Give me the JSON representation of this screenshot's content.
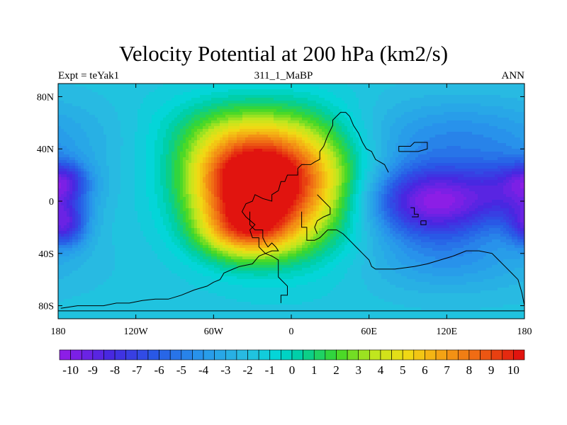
{
  "chart_data": {
    "type": "heatmap",
    "title": "Velocity Potential at 200 hPa (km2/s)",
    "left_subtitle": "Expt = teYak1",
    "center_subtitle": "311_1_MaBP",
    "right_subtitle": "ANN",
    "x_ticks": [
      {
        "value": -180,
        "label": "180"
      },
      {
        "value": -120,
        "label": "120W"
      },
      {
        "value": -60,
        "label": "60W"
      },
      {
        "value": 0,
        "label": "0"
      },
      {
        "value": 60,
        "label": "60E"
      },
      {
        "value": 120,
        "label": "120E"
      },
      {
        "value": 180,
        "label": "180"
      }
    ],
    "y_ticks": [
      {
        "value": 80,
        "label": "80N"
      },
      {
        "value": 40,
        "label": "40N"
      },
      {
        "value": 0,
        "label": "0"
      },
      {
        "value": -40,
        "label": "40S"
      },
      {
        "value": -80,
        "label": "80S"
      }
    ],
    "xlim": [
      -180,
      180
    ],
    "ylim": [
      -90,
      90
    ],
    "colorbar": {
      "min": -10.5,
      "max": 10.5,
      "step": 0.5,
      "labels": [
        "-10",
        "-9",
        "-8",
        "-7",
        "-6",
        "-5",
        "-4",
        "-3",
        "-2",
        "-1",
        "0",
        "1",
        "2",
        "3",
        "4",
        "5",
        "6",
        "7",
        "8",
        "9",
        "10"
      ],
      "label_values": [
        -10,
        -9,
        -8,
        -7,
        -6,
        -5,
        -4,
        -3,
        -2,
        -1,
        0,
        1,
        2,
        3,
        4,
        5,
        6,
        7,
        8,
        9,
        10
      ]
    },
    "field": {
      "base": -1.8,
      "features": [
        {
          "kind": "max",
          "lon": -35,
          "lat": 18,
          "amp": 10.5,
          "sx": 32,
          "sy": 24
        },
        {
          "kind": "max",
          "lon": -35,
          "lat": -22,
          "amp": 6.5,
          "sx": 26,
          "sy": 16
        },
        {
          "kind": "max",
          "lon": 15,
          "lat": 25,
          "amp": 4.0,
          "sx": 30,
          "sy": 30
        },
        {
          "kind": "max",
          "lon": -5,
          "lat": -5,
          "amp": 4.5,
          "sx": 45,
          "sy": 32
        },
        {
          "kind": "max",
          "lon": -40,
          "lat": 55,
          "amp": 3.0,
          "sx": 45,
          "sy": 20
        },
        {
          "kind": "min",
          "lon": 110,
          "lat": 0,
          "amp": -8.5,
          "sx": 38,
          "sy": 20
        },
        {
          "kind": "min",
          "lon": 175,
          "lat": 10,
          "amp": -4.0,
          "sx": 22,
          "sy": 16
        },
        {
          "kind": "min",
          "lon": -175,
          "lat": -18,
          "amp": -5.5,
          "sx": 12,
          "sy": 12
        },
        {
          "kind": "min",
          "lon": -175,
          "lat": 15,
          "amp": -3.0,
          "sx": 12,
          "sy": 10
        },
        {
          "kind": "min",
          "lon": 130,
          "lat": 50,
          "amp": -2.5,
          "sx": 60,
          "sy": 20
        },
        {
          "kind": "min",
          "lon": 120,
          "lat": -45,
          "amp": -2.0,
          "sx": 50,
          "sy": 18
        }
      ]
    },
    "coastlines": [
      {
        "name": "n-america",
        "points": [
          [
            -8,
            -78
          ],
          [
            -8,
            -72
          ],
          [
            -3,
            -72
          ],
          [
            -3,
            -65
          ],
          [
            -10,
            -58
          ],
          [
            -10,
            -45
          ],
          [
            -15,
            -42
          ],
          [
            -20,
            -40
          ],
          [
            -25,
            -35
          ],
          [
            -25,
            -28
          ],
          [
            -30,
            -28
          ],
          [
            -32,
            -22
          ],
          [
            -28,
            -18
          ],
          [
            -35,
            -12
          ],
          [
            -38,
            -8
          ],
          [
            -35,
            -2
          ],
          [
            -30,
            0
          ],
          [
            -28,
            5
          ],
          [
            -22,
            2
          ],
          [
            -15,
            0
          ],
          [
            -15,
            5
          ],
          [
            -10,
            8
          ],
          [
            -8,
            15
          ],
          [
            -5,
            15
          ],
          [
            -3,
            20
          ],
          [
            5,
            20
          ],
          [
            5,
            25
          ],
          [
            8,
            28
          ],
          [
            15,
            28
          ],
          [
            18,
            30
          ],
          [
            22,
            32
          ],
          [
            22,
            38
          ],
          [
            25,
            42
          ],
          [
            28,
            50
          ],
          [
            32,
            58
          ],
          [
            32,
            62
          ],
          [
            38,
            68
          ],
          [
            42,
            68
          ],
          [
            45,
            65
          ],
          [
            48,
            58
          ],
          [
            52,
            52
          ],
          [
            55,
            45
          ],
          [
            58,
            40
          ],
          [
            62,
            38
          ],
          [
            65,
            32
          ],
          [
            72,
            28
          ],
          [
            75,
            22
          ]
        ]
      },
      {
        "name": "s-america",
        "points": [
          [
            -32,
            -8
          ],
          [
            -32,
            -18
          ],
          [
            -28,
            -22
          ],
          [
            -22,
            -22
          ],
          [
            -22,
            -28
          ],
          [
            -20,
            -32
          ],
          [
            -18,
            -35
          ],
          [
            -15,
            -32
          ],
          [
            -12,
            -35
          ],
          [
            -10,
            -38
          ],
          [
            -15,
            -38
          ],
          [
            -25,
            -42
          ],
          [
            -30,
            -48
          ],
          [
            -40,
            -50
          ],
          [
            -45,
            -52
          ],
          [
            -52,
            -55
          ],
          [
            -55,
            -60
          ],
          [
            -60,
            -62
          ],
          [
            -65,
            -65
          ],
          [
            -75,
            -68
          ],
          [
            -85,
            -72
          ],
          [
            -95,
            -75
          ],
          [
            -105,
            -75
          ],
          [
            -115,
            -76
          ],
          [
            -125,
            -78
          ],
          [
            -135,
            -78
          ],
          [
            -145,
            -80
          ],
          [
            -155,
            -80
          ],
          [
            -165,
            -80
          ],
          [
            -178,
            -82
          ]
        ]
      },
      {
        "name": "interior",
        "points": [
          [
            8,
            -8
          ],
          [
            8,
            -20
          ],
          [
            12,
            -20
          ],
          [
            12,
            -30
          ],
          [
            18,
            -30
          ],
          [
            22,
            -28
          ],
          [
            28,
            -22
          ],
          [
            35,
            -22
          ],
          [
            40,
            -25
          ],
          [
            45,
            -30
          ],
          [
            50,
            -35
          ],
          [
            55,
            -40
          ],
          [
            60,
            -45
          ],
          [
            62,
            -50
          ],
          [
            65,
            -52
          ],
          [
            80,
            -52
          ],
          [
            95,
            -50
          ],
          [
            105,
            -48
          ],
          [
            115,
            -45
          ],
          [
            125,
            -42
          ],
          [
            135,
            -38
          ],
          [
            145,
            -38
          ],
          [
            155,
            -40
          ],
          [
            160,
            -45
          ],
          [
            165,
            -50
          ],
          [
            170,
            -55
          ],
          [
            175,
            -60
          ],
          [
            178,
            -70
          ],
          [
            180,
            -80
          ]
        ]
      },
      {
        "name": "bottom",
        "points": [
          [
            -180,
            -84
          ],
          [
            -100,
            -84
          ],
          [
            -40,
            -84
          ],
          [
            0,
            -84
          ],
          [
            60,
            -84
          ],
          [
            120,
            -84
          ],
          [
            180,
            -84
          ]
        ]
      },
      {
        "name": "asia-arc",
        "points": [
          [
            20,
            5
          ],
          [
            25,
            0
          ],
          [
            30,
            -5
          ],
          [
            30,
            -10
          ],
          [
            25,
            -12
          ],
          [
            20,
            -15
          ],
          [
            18,
            -20
          ],
          [
            20,
            -25
          ]
        ]
      },
      {
        "name": "japan",
        "points": [
          [
            83,
            38
          ],
          [
            83,
            42
          ],
          [
            92,
            42
          ],
          [
            95,
            45
          ],
          [
            105,
            45
          ],
          [
            105,
            40
          ],
          [
            98,
            38
          ],
          [
            90,
            38
          ],
          [
            83,
            38
          ]
        ]
      },
      {
        "name": "eastern-island",
        "points": [
          [
            92,
            -5
          ],
          [
            95,
            -5
          ],
          [
            95,
            -10
          ],
          [
            98,
            -10
          ],
          [
            98,
            -12
          ],
          [
            93,
            -12
          ]
        ]
      },
      {
        "name": "small-island",
        "points": [
          [
            100,
            -15
          ],
          [
            104,
            -15
          ],
          [
            104,
            -18
          ],
          [
            100,
            -18
          ],
          [
            100,
            -15
          ]
        ]
      }
    ]
  }
}
